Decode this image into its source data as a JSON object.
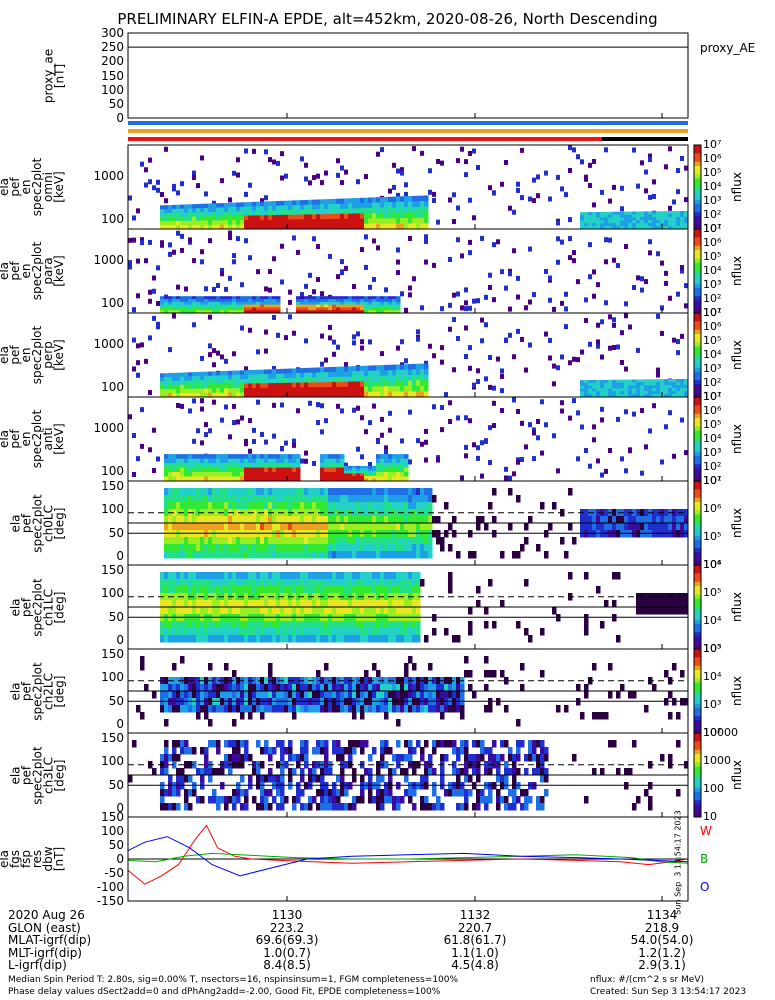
{
  "title": "PRELIMINARY ELFIN-A EPDE, alt=452km, 2020-08-26, North Descending",
  "panels": [
    {
      "label": "proxy_ae\n[nT]",
      "ticks": [
        "300",
        "250",
        "200",
        "150",
        "100",
        "50",
        "0"
      ],
      "right_label": "proxy_AE"
    },
    {
      "label": "ela\npef\nen\nspec2plot\nomni\n[keV]",
      "ticks": [
        "1000",
        "100"
      ],
      "cb_ticks": [
        "10⁷",
        "10⁶",
        "10⁵",
        "10⁴",
        "10³",
        "10²",
        "10¹"
      ],
      "cb_unit": "nflux"
    },
    {
      "label": "ela\npef\nen\nspec2plot\npara\n[keV]",
      "ticks": [
        "1000",
        "100"
      ],
      "cb_ticks": [
        "10⁷",
        "10⁶",
        "10⁵",
        "10⁴",
        "10³",
        "10²",
        "10¹"
      ],
      "cb_unit": "nflux"
    },
    {
      "label": "ela\npef\nen\nspec2plot\nperp\n[keV]",
      "ticks": [
        "1000",
        "100"
      ],
      "cb_ticks": [
        "10⁷",
        "10⁶",
        "10⁵",
        "10⁴",
        "10³",
        "10²",
        "10¹"
      ],
      "cb_unit": "nflux"
    },
    {
      "label": "ela\npef\nen\nspec2plot\nanti\n[keV]",
      "ticks": [
        "1000",
        "100"
      ],
      "cb_ticks": [
        "10⁷",
        "10⁶",
        "10⁵",
        "10⁴",
        "10³",
        "10²",
        "10¹"
      ],
      "cb_unit": "nflux"
    },
    {
      "label": "ela\npef\nspec2plot\nch0LC\n[deg]",
      "ticks": [
        "150",
        "100",
        "50",
        "0"
      ],
      "cb_ticks": [
        "10⁷",
        "10⁶",
        "10⁵",
        "10⁴"
      ],
      "cb_unit": "nflux"
    },
    {
      "label": "ela\npef\nspec2plot\nch1LC\n[deg]",
      "ticks": [
        "150",
        "100",
        "50",
        "0"
      ],
      "cb_ticks": [
        "10⁶",
        "10⁵",
        "10⁴",
        "10³"
      ],
      "cb_unit": "nflux"
    },
    {
      "label": "ela\npef\nspec2plot\nch2LC\n[deg]",
      "ticks": [
        "150",
        "100",
        "50",
        "0"
      ],
      "cb_ticks": [
        "10⁵",
        "10⁴",
        "10³",
        "10²"
      ],
      "cb_unit": "nflux"
    },
    {
      "label": "ela\npef\nspec2plot\nch3LC\n[deg]",
      "ticks": [
        "150",
        "100",
        "50",
        "0"
      ],
      "cb_ticks": [
        "10000",
        "1000",
        "100",
        "10"
      ],
      "cb_unit": "nflux"
    },
    {
      "label": "ela\nfgs\nfsp\nres\ndbw\n[nT]",
      "ticks": [
        "150",
        "100",
        "50",
        "0",
        "-50",
        "-100",
        "-150"
      ]
    }
  ],
  "chart_data": {
    "type": "line",
    "title": "PRELIMINARY ELFIN-A EPDE, alt=452km, 2020-08-26, North Descending",
    "ylabel": "ela fgs fsp res dbw [nT]",
    "ylim": [
      -150,
      150
    ],
    "x_ticks": [
      "1130",
      "1132",
      "1134"
    ],
    "series": [
      {
        "name": "W",
        "color": "#ff0000",
        "x_frac": [
          0.0,
          0.03,
          0.06,
          0.09,
          0.12,
          0.14,
          0.16,
          0.19,
          0.22,
          0.27,
          0.33,
          0.4,
          0.5,
          0.6,
          0.7,
          0.8,
          0.88,
          0.93,
          0.97,
          1.0
        ],
        "values": [
          -40,
          -90,
          -60,
          -20,
          70,
          120,
          40,
          10,
          0,
          -5,
          -10,
          -15,
          -10,
          -5,
          0,
          -5,
          -10,
          -20,
          -10,
          0
        ]
      },
      {
        "name": "B",
        "color": "#00aa00",
        "x_frac": [
          0.0,
          0.05,
          0.1,
          0.15,
          0.2,
          0.3,
          0.4,
          0.5,
          0.6,
          0.7,
          0.8,
          0.9,
          0.95,
          1.0
        ],
        "values": [
          -5,
          -10,
          10,
          20,
          15,
          5,
          0,
          0,
          5,
          10,
          15,
          5,
          -10,
          -15
        ]
      },
      {
        "name": "O",
        "color": "#0000ff",
        "x_frac": [
          0.0,
          0.03,
          0.07,
          0.11,
          0.15,
          0.2,
          0.26,
          0.32,
          0.4,
          0.5,
          0.6,
          0.7,
          0.8,
          0.88,
          0.94,
          1.0
        ],
        "values": [
          30,
          60,
          80,
          40,
          -20,
          -60,
          -30,
          0,
          10,
          15,
          20,
          10,
          5,
          0,
          -5,
          -10
        ]
      }
    ]
  },
  "side_text": "Sun Sep  3 13:54:17 2023",
  "footer": {
    "rows": [
      "2020 Aug 26",
      "GLON (east)",
      "MLAT-igrf(dip)",
      "MLT-igrf(dip)",
      "L-igrf(dip)"
    ],
    "columns": [
      [
        "1130",
        "223.2",
        "69.6(69.3)",
        "1.0(0.7)",
        "8.4(8.5)"
      ],
      [
        "1132",
        "220.7",
        "61.8(61.7)",
        "1.1(1.0)",
        "4.5(4.8)"
      ],
      [
        "1134",
        "218.9",
        "54.0(54.0)",
        "1.2(1.2)",
        "2.9(3.1)"
      ]
    ],
    "note1": "Median Spin Period T: 2.80s, sig=0.00% T, nsectors=16, nspinsinsum=1, FGM completeness=100%",
    "note2": "Phase delay values dSect2add=0 and dPhAng2add=-2.00, Good Fit, EPDE completeness=100%",
    "unit_note": "nflux: #/(cm^2 s sr MeV)",
    "created": "Created: Sun Sep  3 13:54:17 2023"
  }
}
